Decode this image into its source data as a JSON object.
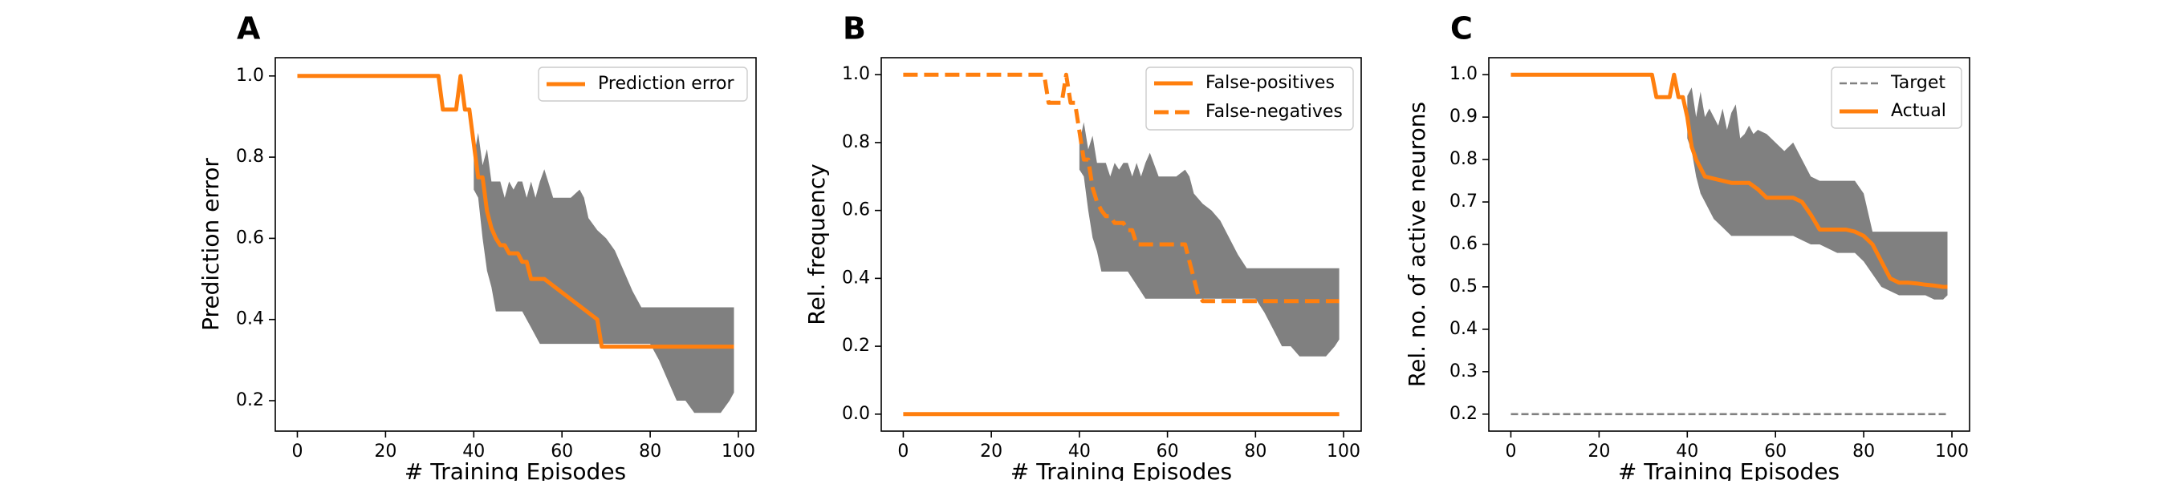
{
  "colors": {
    "orange": "#ff7f0e",
    "band": "#808080",
    "target": "#808080"
  },
  "chart_data": [
    {
      "panel": "A",
      "type": "line",
      "xlabel": "# Training Episodes",
      "ylabel": "Prediction error",
      "xlim": [
        -5,
        104
      ],
      "ylim": [
        0.125,
        1.045
      ],
      "xticks": [
        0,
        20,
        40,
        60,
        80,
        100
      ],
      "yticks": [
        0.2,
        0.4,
        0.6,
        0.8,
        1.0
      ],
      "ytick_labels": [
        "0.2",
        "0.4",
        "0.6",
        "0.8",
        "1.0"
      ],
      "legend": "top-right",
      "series": [
        {
          "name": "Prediction error",
          "style": "solid",
          "x": [
            0,
            32,
            33,
            36,
            37,
            38,
            39,
            40,
            41,
            42,
            43,
            44,
            45,
            46,
            47,
            48,
            49,
            50,
            51,
            52,
            53,
            54,
            55,
            56,
            68,
            69,
            70,
            99
          ],
          "y": [
            1.0,
            1.0,
            0.917,
            0.917,
            1.0,
            0.917,
            0.917,
            0.833,
            0.75,
            0.75,
            0.667,
            0.625,
            0.6,
            0.583,
            0.583,
            0.563,
            0.563,
            0.563,
            0.542,
            0.542,
            0.5,
            0.5,
            0.5,
            0.5,
            0.4,
            0.333,
            0.333,
            0.333
          ]
        }
      ],
      "band": {
        "x": [
          40,
          41,
          42,
          43,
          44,
          45,
          46,
          47,
          48,
          49,
          50,
          51,
          52,
          53,
          54,
          55,
          56,
          58,
          60,
          62,
          64,
          65,
          66,
          68,
          70,
          72,
          74,
          76,
          78,
          80,
          82,
          84,
          86,
          88,
          90,
          92,
          94,
          96,
          98,
          99
        ],
        "upper": [
          0.8,
          0.86,
          0.78,
          0.82,
          0.74,
          0.74,
          0.74,
          0.7,
          0.74,
          0.72,
          0.74,
          0.74,
          0.7,
          0.74,
          0.7,
          0.74,
          0.77,
          0.7,
          0.7,
          0.7,
          0.72,
          0.7,
          0.65,
          0.62,
          0.6,
          0.57,
          0.52,
          0.47,
          0.43,
          0.43,
          0.43,
          0.43,
          0.43,
          0.43,
          0.43,
          0.43,
          0.43,
          0.43,
          0.43,
          0.43
        ],
        "lower": [
          0.72,
          0.7,
          0.6,
          0.52,
          0.48,
          0.42,
          0.42,
          0.42,
          0.42,
          0.42,
          0.42,
          0.42,
          0.4,
          0.38,
          0.36,
          0.34,
          0.34,
          0.34,
          0.34,
          0.34,
          0.34,
          0.34,
          0.34,
          0.34,
          0.34,
          0.34,
          0.34,
          0.34,
          0.34,
          0.34,
          0.3,
          0.25,
          0.2,
          0.2,
          0.17,
          0.17,
          0.17,
          0.17,
          0.2,
          0.22
        ]
      }
    },
    {
      "panel": "B",
      "type": "line",
      "xlabel": "# Training Episodes",
      "ylabel": "Rel. frequency",
      "xlim": [
        -5,
        104
      ],
      "ylim": [
        -0.05,
        1.05
      ],
      "xticks": [
        0,
        20,
        40,
        60,
        80,
        100
      ],
      "yticks": [
        0.0,
        0.2,
        0.4,
        0.6,
        0.8,
        1.0
      ],
      "ytick_labels": [
        "0.0",
        "0.2",
        "0.4",
        "0.6",
        "0.8",
        "1.0"
      ],
      "legend": "top-right",
      "series": [
        {
          "name": "False-positives",
          "style": "solid",
          "x": [
            0,
            99
          ],
          "y": [
            0.0,
            0.0
          ]
        },
        {
          "name": "False-negatives",
          "style": "dashed",
          "x": [
            0,
            32,
            33,
            36,
            37,
            38,
            39,
            40,
            41,
            42,
            43,
            44,
            45,
            46,
            47,
            48,
            49,
            50,
            51,
            52,
            53,
            54,
            55,
            56,
            64,
            65,
            66,
            67,
            68,
            70,
            99
          ],
          "y": [
            1.0,
            1.0,
            0.917,
            0.917,
            1.0,
            0.917,
            0.917,
            0.833,
            0.75,
            0.75,
            0.667,
            0.625,
            0.6,
            0.583,
            0.583,
            0.563,
            0.563,
            0.563,
            0.542,
            0.542,
            0.5,
            0.5,
            0.5,
            0.5,
            0.5,
            0.45,
            0.4,
            0.35,
            0.333,
            0.333,
            0.333
          ]
        }
      ],
      "band": {
        "x": [
          40,
          41,
          42,
          43,
          44,
          45,
          46,
          47,
          48,
          49,
          50,
          51,
          52,
          53,
          54,
          55,
          56,
          58,
          60,
          62,
          64,
          65,
          66,
          68,
          70,
          72,
          74,
          76,
          78,
          80,
          82,
          84,
          86,
          88,
          90,
          92,
          94,
          96,
          98,
          99
        ],
        "upper": [
          0.8,
          0.86,
          0.78,
          0.82,
          0.74,
          0.74,
          0.74,
          0.7,
          0.74,
          0.72,
          0.74,
          0.74,
          0.7,
          0.74,
          0.7,
          0.74,
          0.77,
          0.7,
          0.7,
          0.7,
          0.72,
          0.7,
          0.65,
          0.62,
          0.6,
          0.57,
          0.52,
          0.47,
          0.43,
          0.43,
          0.43,
          0.43,
          0.43,
          0.43,
          0.43,
          0.43,
          0.43,
          0.43,
          0.43,
          0.43
        ],
        "lower": [
          0.72,
          0.7,
          0.6,
          0.52,
          0.48,
          0.42,
          0.42,
          0.42,
          0.42,
          0.42,
          0.42,
          0.42,
          0.4,
          0.38,
          0.36,
          0.34,
          0.34,
          0.34,
          0.34,
          0.34,
          0.34,
          0.34,
          0.34,
          0.34,
          0.34,
          0.34,
          0.34,
          0.34,
          0.34,
          0.34,
          0.3,
          0.25,
          0.2,
          0.2,
          0.17,
          0.17,
          0.17,
          0.17,
          0.2,
          0.22
        ]
      }
    },
    {
      "panel": "C",
      "type": "line",
      "xlabel": "# Training Episodes",
      "ylabel": "Rel. no. of active neurons",
      "xlim": [
        -5,
        104
      ],
      "ylim": [
        0.16,
        1.04
      ],
      "xticks": [
        0,
        20,
        40,
        60,
        80,
        100
      ],
      "yticks": [
        0.2,
        0.3,
        0.4,
        0.5,
        0.6,
        0.7,
        0.8,
        0.9,
        1.0
      ],
      "ytick_labels": [
        "0.2",
        "0.3",
        "0.4",
        "0.5",
        "0.6",
        "0.7",
        "0.8",
        "0.9",
        "1.0"
      ],
      "legend": "top-right",
      "series": [
        {
          "name": "Target",
          "style": "thin-dashed",
          "x": [
            0,
            99
          ],
          "y": [
            0.2,
            0.2
          ]
        },
        {
          "name": "Actual",
          "style": "solid",
          "x": [
            0,
            32,
            33,
            36,
            37,
            38,
            39,
            40,
            41,
            42,
            43,
            44,
            46,
            48,
            50,
            52,
            54,
            56,
            58,
            60,
            62,
            64,
            66,
            68,
            70,
            72,
            74,
            76,
            78,
            80,
            82,
            84,
            86,
            88,
            90,
            92,
            94,
            96,
            98,
            99
          ],
          "y": [
            1.0,
            1.0,
            0.947,
            0.947,
            1.0,
            0.947,
            0.947,
            0.9,
            0.83,
            0.8,
            0.78,
            0.76,
            0.755,
            0.75,
            0.745,
            0.745,
            0.745,
            0.73,
            0.71,
            0.71,
            0.71,
            0.71,
            0.7,
            0.67,
            0.635,
            0.635,
            0.635,
            0.635,
            0.63,
            0.62,
            0.6,
            0.56,
            0.52,
            0.51,
            0.51,
            0.508,
            0.505,
            0.503,
            0.5,
            0.5
          ]
        }
      ],
      "band": {
        "x": [
          40,
          41,
          42,
          43,
          44,
          45,
          46,
          47,
          48,
          49,
          50,
          51,
          52,
          53,
          54,
          55,
          56,
          58,
          60,
          62,
          64,
          66,
          68,
          70,
          72,
          74,
          76,
          78,
          80,
          82,
          84,
          86,
          88,
          90,
          92,
          94,
          96,
          98,
          99
        ],
        "upper": [
          0.95,
          0.97,
          0.9,
          0.96,
          0.9,
          0.92,
          0.9,
          0.88,
          0.92,
          0.87,
          0.91,
          0.93,
          0.85,
          0.86,
          0.88,
          0.86,
          0.87,
          0.86,
          0.84,
          0.82,
          0.84,
          0.8,
          0.76,
          0.75,
          0.75,
          0.75,
          0.75,
          0.75,
          0.72,
          0.63,
          0.63,
          0.63,
          0.63,
          0.63,
          0.63,
          0.63,
          0.63,
          0.63,
          0.63
        ],
        "lower": [
          0.85,
          0.82,
          0.76,
          0.72,
          0.7,
          0.68,
          0.66,
          0.65,
          0.64,
          0.63,
          0.62,
          0.62,
          0.62,
          0.62,
          0.62,
          0.62,
          0.62,
          0.62,
          0.62,
          0.62,
          0.62,
          0.61,
          0.6,
          0.6,
          0.59,
          0.58,
          0.58,
          0.58,
          0.56,
          0.53,
          0.5,
          0.49,
          0.48,
          0.48,
          0.48,
          0.48,
          0.47,
          0.47,
          0.48
        ]
      }
    }
  ]
}
